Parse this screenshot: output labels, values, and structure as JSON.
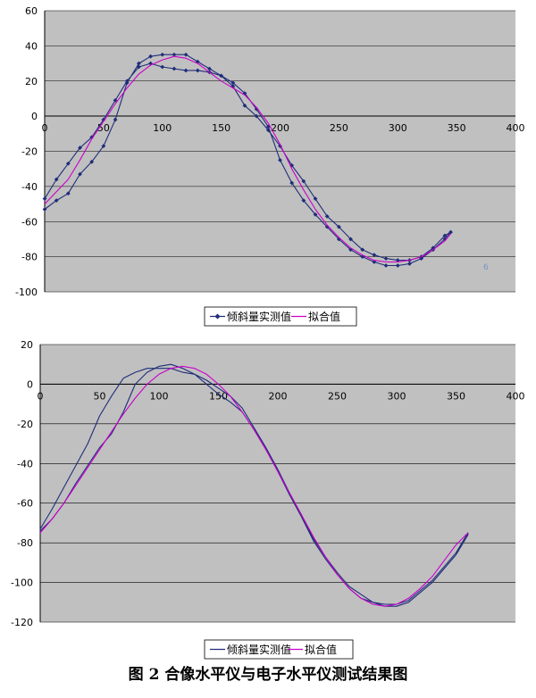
{
  "caption": "图 2  合像水平仪与电子水平仪测试结果图",
  "chart_data": [
    {
      "type": "line",
      "title": "",
      "xlabel": "",
      "ylabel": "",
      "xlim": [
        0,
        400
      ],
      "ylim": [
        -100,
        60
      ],
      "x_ticks": [
        "0",
        "50",
        "100",
        "150",
        "200",
        "250",
        "300",
        "350",
        "400"
      ],
      "y_ticks": [
        "60",
        "40",
        "20",
        "0",
        "-20",
        "-40",
        "-60",
        "-80",
        "-100"
      ],
      "grid": true,
      "legend_position": "bottom",
      "stray_label": "6",
      "series": [
        {
          "name": "倾斜量实测值",
          "color": "#1f2d7a",
          "marker": "diamond",
          "x": [
            0,
            10,
            20,
            30,
            40,
            50,
            60,
            70,
            80,
            90,
            100,
            110,
            120,
            130,
            140,
            150,
            160,
            170,
            180,
            190,
            200,
            210,
            220,
            230,
            240,
            250,
            260,
            270,
            280,
            290,
            300,
            310,
            320,
            330,
            340,
            345,
            340,
            330,
            320,
            310,
            300,
            290,
            280,
            270,
            260,
            250,
            240,
            230,
            220,
            210,
            200,
            190,
            180,
            170,
            160,
            150,
            140,
            130,
            120,
            110,
            100,
            90,
            80,
            70,
            60,
            50,
            40,
            30,
            20,
            10,
            0
          ],
          "y": [
            -53,
            -48,
            -44,
            -33,
            -26,
            -17,
            -2,
            19,
            30,
            34,
            35,
            35,
            35,
            31,
            27,
            23,
            19,
            13,
            4,
            -6,
            -25,
            -38,
            -48,
            -56,
            -63,
            -70,
            -76,
            -80,
            -83,
            -85,
            -85,
            -84,
            -81,
            -76,
            -70,
            -66,
            -68,
            -75,
            -80,
            -82,
            -82,
            -81,
            -79,
            -76,
            -70,
            -63,
            -57,
            -47,
            -37,
            -28,
            -17,
            -8,
            0,
            6,
            17,
            23,
            25,
            26,
            26,
            27,
            28,
            30,
            28,
            20,
            9,
            -2,
            -12,
            -18,
            -27,
            -36,
            -47
          ]
        },
        {
          "name": "拟合值",
          "color": "#cc00cc",
          "x": [
            0,
            10,
            20,
            30,
            40,
            50,
            60,
            70,
            80,
            90,
            100,
            110,
            120,
            130,
            140,
            150,
            160,
            170,
            180,
            190,
            200,
            210,
            220,
            230,
            240,
            250,
            260,
            270,
            280,
            290,
            300,
            310,
            320,
            330,
            340,
            345
          ],
          "y": [
            -50,
            -43,
            -36,
            -25,
            -13,
            -3,
            7,
            16,
            24,
            29,
            32,
            34,
            33,
            30,
            25,
            20,
            16,
            12,
            5,
            -4,
            -16,
            -30,
            -42,
            -53,
            -62,
            -69,
            -75,
            -79,
            -82,
            -83,
            -83,
            -82,
            -80,
            -76,
            -71,
            -67
          ]
        }
      ]
    },
    {
      "type": "line",
      "title": "",
      "xlabel": "",
      "ylabel": "",
      "xlim": [
        0,
        400
      ],
      "ylim": [
        -120,
        20
      ],
      "x_ticks": [
        "0",
        "50",
        "100",
        "150",
        "200",
        "250",
        "300",
        "350",
        "400"
      ],
      "y_ticks": [
        "20",
        "0",
        "-20",
        "-40",
        "-60",
        "-80",
        "-100",
        "-120"
      ],
      "grid": true,
      "legend_position": "bottom",
      "series": [
        {
          "name": "倾斜量实测值",
          "color": "#1f2d7a",
          "x": [
            0,
            10,
            20,
            30,
            40,
            50,
            60,
            70,
            80,
            90,
            100,
            110,
            120,
            130,
            140,
            150,
            160,
            170,
            180,
            190,
            200,
            210,
            220,
            230,
            240,
            250,
            260,
            270,
            280,
            290,
            300,
            310,
            320,
            330,
            340,
            350,
            360,
            360,
            350,
            340,
            330,
            320,
            310,
            300,
            290,
            280,
            270,
            260,
            250,
            240,
            230,
            220,
            210,
            200,
            190,
            180,
            170,
            160,
            150,
            140,
            130,
            120,
            110,
            100,
            90,
            80,
            70,
            60,
            50,
            40,
            30,
            20,
            10,
            0
          ],
          "y": [
            -74,
            -68,
            -60,
            -50,
            -41,
            -32,
            -25,
            -14,
            0,
            6,
            9,
            10,
            8,
            5,
            0,
            -5,
            -9,
            -14,
            -23,
            -33,
            -44,
            -56,
            -67,
            -79,
            -88,
            -96,
            -103,
            -108,
            -110,
            -111,
            -111,
            -109,
            -104,
            -99,
            -92,
            -85,
            -75,
            -76,
            -86,
            -93,
            -100,
            -105,
            -110,
            -112,
            -112,
            -110,
            -106,
            -102,
            -95,
            -87,
            -78,
            -66,
            -55,
            -43,
            -32,
            -22,
            -12,
            -6,
            -2,
            2,
            5,
            6,
            8,
            8,
            8,
            6,
            3,
            -6,
            -16,
            -30,
            -41,
            -52,
            -63,
            -73
          ]
        },
        {
          "name": "拟合值",
          "color": "#cc00cc",
          "x": [
            0,
            10,
            20,
            30,
            40,
            50,
            60,
            70,
            80,
            90,
            100,
            110,
            120,
            130,
            140,
            150,
            160,
            170,
            180,
            190,
            200,
            210,
            220,
            230,
            240,
            250,
            260,
            270,
            280,
            290,
            300,
            310,
            320,
            330,
            340,
            350,
            360
          ],
          "y": [
            -75,
            -68,
            -60,
            -51,
            -42,
            -33,
            -24,
            -15,
            -7,
            0,
            5,
            8,
            9,
            8,
            5,
            0,
            -6,
            -14,
            -23,
            -33,
            -44,
            -55,
            -66,
            -77,
            -87,
            -96,
            -103,
            -108,
            -111,
            -112,
            -111,
            -108,
            -103,
            -97,
            -89,
            -81,
            -75
          ]
        }
      ]
    }
  ]
}
